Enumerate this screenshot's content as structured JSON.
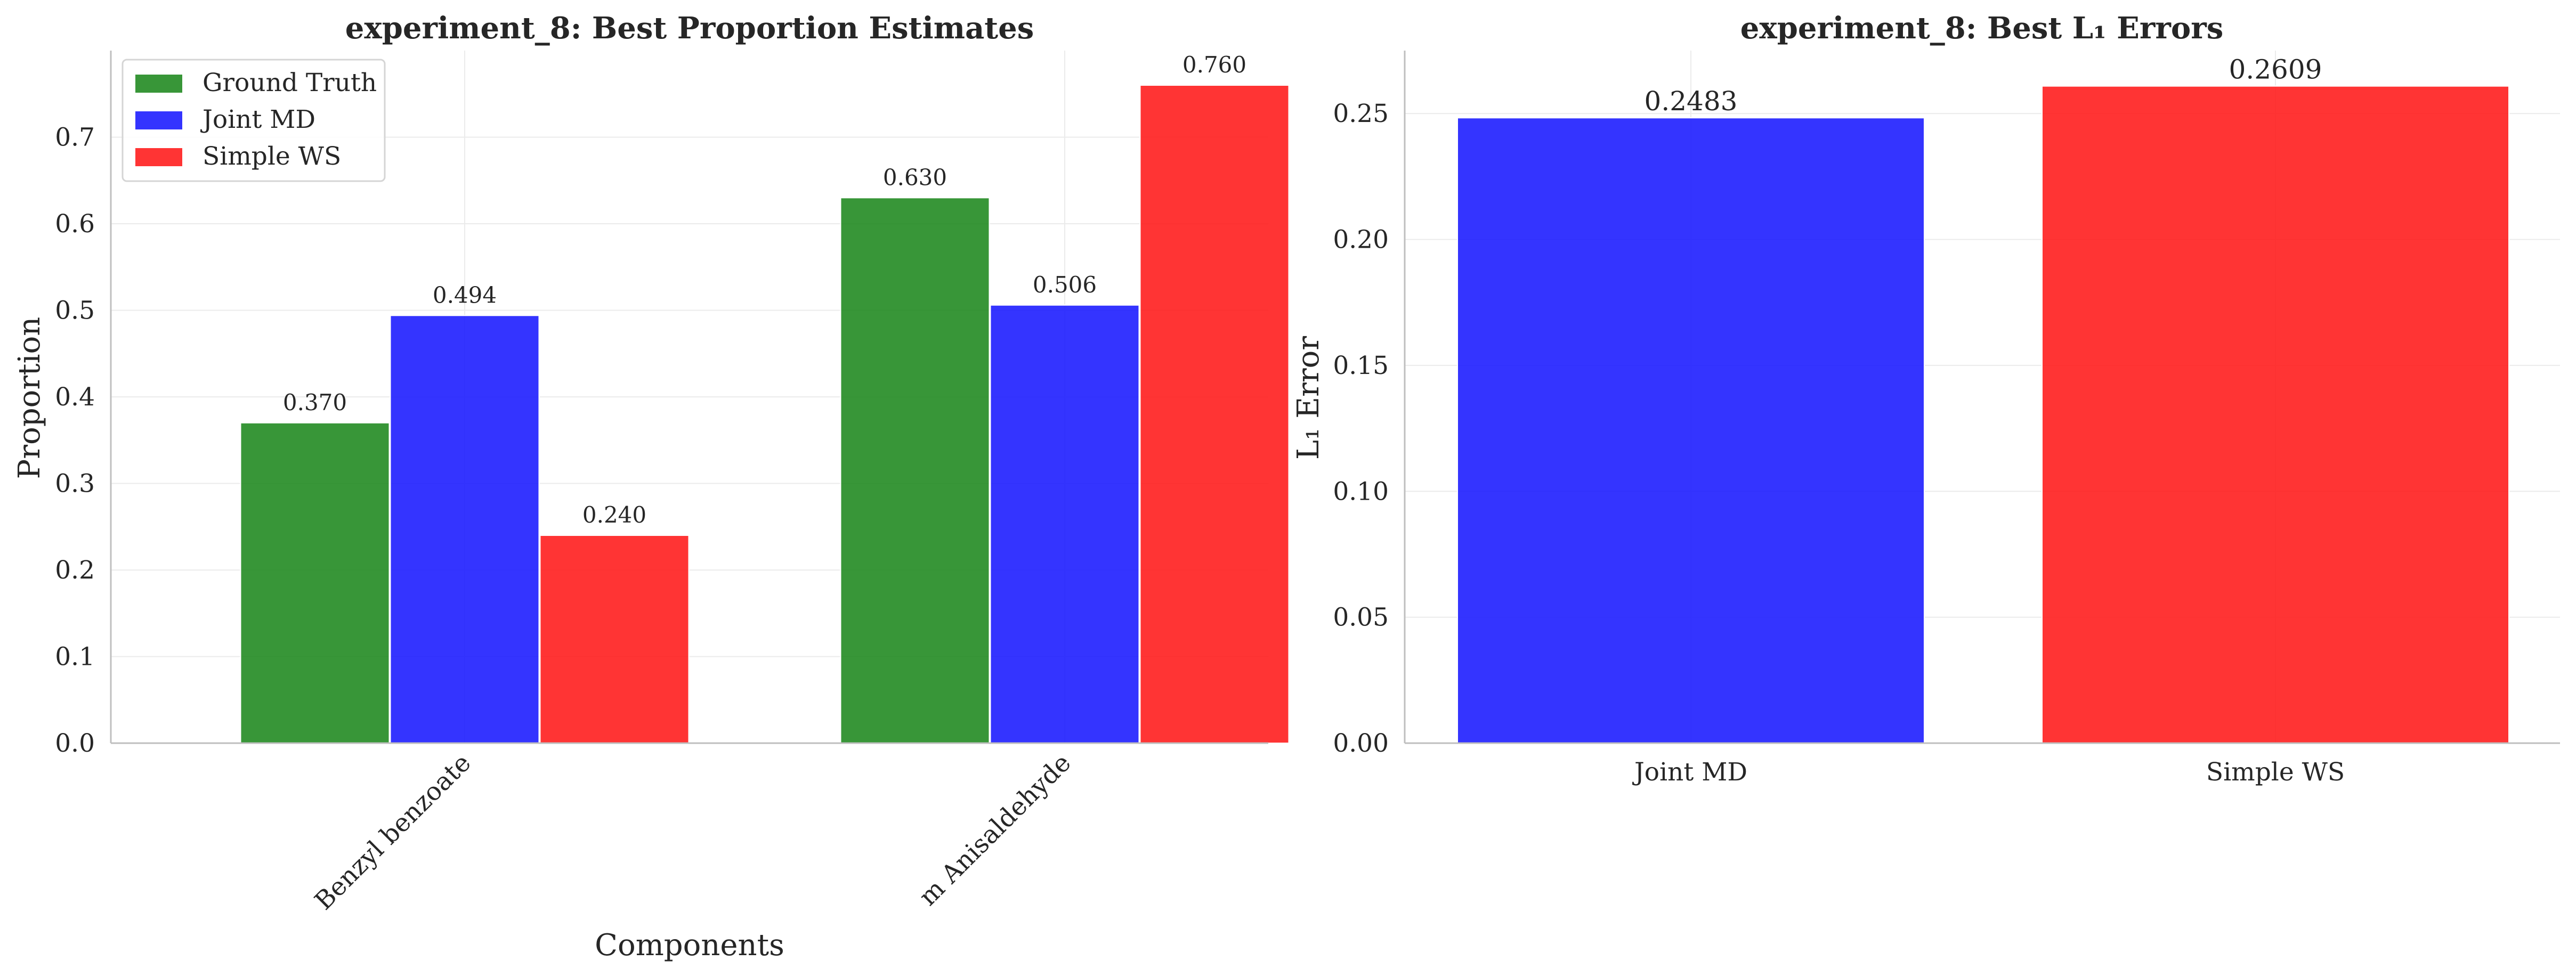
{
  "chart_data": [
    {
      "type": "bar",
      "title": "experiment_8: Best Proportion Estimates",
      "xlabel": "Components",
      "ylabel": "Proportion",
      "categories": [
        "Benzyl benzoate",
        "m Anisaldehyde"
      ],
      "series": [
        {
          "name": "Ground Truth",
          "color": "#228B22",
          "values": [
            0.37,
            0.63
          ],
          "labels": [
            "0.370",
            "0.630"
          ]
        },
        {
          "name": "Joint MD",
          "color": "#1E1EFF",
          "values": [
            0.494,
            0.506
          ],
          "labels": [
            "0.494",
            "0.506"
          ]
        },
        {
          "name": "Simple WS",
          "color": "#FF1E1E",
          "values": [
            0.24,
            0.76
          ],
          "labels": [
            "0.240",
            "0.760"
          ]
        }
      ],
      "ylim": [
        0,
        0.8
      ],
      "yticks": [
        "0.0",
        "0.1",
        "0.2",
        "0.3",
        "0.4",
        "0.5",
        "0.6",
        "0.7"
      ],
      "grid": true,
      "legend": "top-left"
    },
    {
      "type": "bar",
      "title": "experiment_8: Best L₁ Errors",
      "xlabel": "",
      "ylabel": "L₁ Error",
      "categories": [
        "Joint MD",
        "Simple WS"
      ],
      "values": [
        0.2483,
        0.2609
      ],
      "labels": [
        "0.2483",
        "0.2609"
      ],
      "colors": [
        "#1E1EFF",
        "#FF1E1E"
      ],
      "ylim": [
        0,
        0.275
      ],
      "yticks": [
        "0.00",
        "0.05",
        "0.10",
        "0.15",
        "0.20",
        "0.25"
      ],
      "grid": true
    }
  ]
}
